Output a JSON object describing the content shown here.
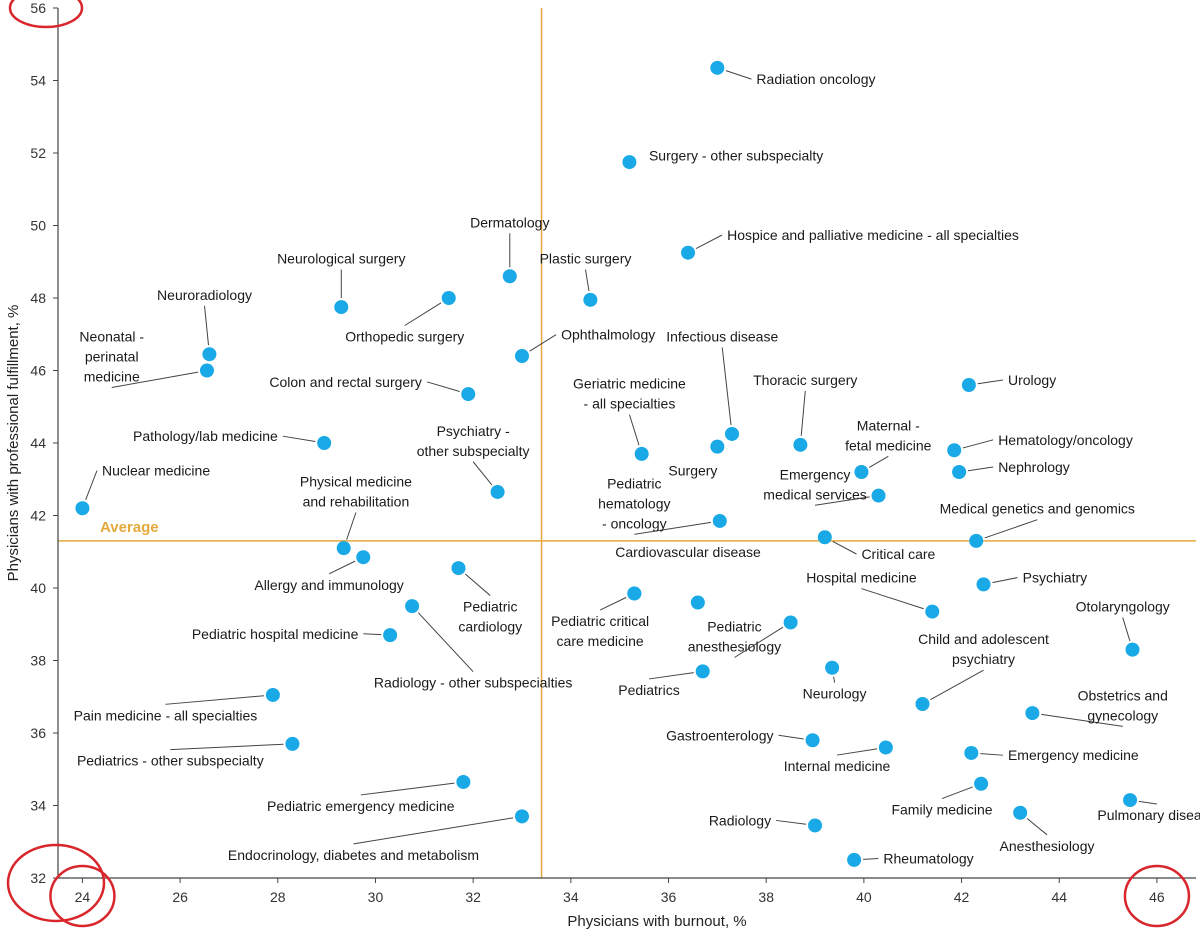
{
  "colors": {
    "point": "#18a9e6",
    "average": "#e5a93b",
    "axis": "#444444",
    "highlight_circle": "#d9262c",
    "leader": "#444444"
  },
  "chart_data": {
    "type": "scatter",
    "title": "",
    "xlabel": "Physicians with burnout, %",
    "ylabel": "Physicians with professional fulfillment, %",
    "xlim": [
      23.5,
      46.8
    ],
    "ylim": [
      32,
      56
    ],
    "xticks": [
      24,
      26,
      28,
      30,
      32,
      34,
      36,
      38,
      40,
      42,
      44,
      46
    ],
    "yticks": [
      32,
      34,
      36,
      38,
      40,
      42,
      44,
      46,
      48,
      50,
      52,
      54,
      56
    ],
    "average": {
      "x": 33.4,
      "y": 41.3,
      "label": "Average"
    },
    "highlighted_ticks": [
      {
        "axis": "y",
        "value": 56
      },
      {
        "axis": "y",
        "value": 32
      },
      {
        "axis": "x",
        "value": 24
      },
      {
        "axis": "x",
        "value": 46
      }
    ],
    "points": [
      {
        "x": 37.0,
        "y": 54.35,
        "name": [
          "Radiation oncology"
        ],
        "anchor": "start",
        "lx": 37.8,
        "ly": 53.9
      },
      {
        "x": 35.2,
        "y": 51.75,
        "name": [
          "Surgery - other subspecialty"
        ],
        "anchor": "start",
        "lx": 35.6,
        "ly": 51.8,
        "noleader": true
      },
      {
        "x": 36.4,
        "y": 49.25,
        "name": [
          "Hospice and palliative medicine - all specialties"
        ],
        "anchor": "start",
        "lx": 37.2,
        "ly": 49.6
      },
      {
        "x": 32.75,
        "y": 48.6,
        "name": [
          "Dermatology"
        ],
        "anchor": "middle",
        "lx": 32.75,
        "ly": 49.95
      },
      {
        "x": 34.4,
        "y": 47.95,
        "name": [
          "Plastic surgery"
        ],
        "anchor": "middle",
        "lx": 34.3,
        "ly": 48.95
      },
      {
        "x": 29.3,
        "y": 47.75,
        "name": [
          "Neurological surgery"
        ],
        "anchor": "middle",
        "lx": 29.3,
        "ly": 48.95
      },
      {
        "x": 31.5,
        "y": 48.0,
        "name": [
          "Orthopedic surgery"
        ],
        "anchor": "middle",
        "lx": 30.6,
        "ly": 46.8
      },
      {
        "x": 26.6,
        "y": 46.45,
        "name": [
          "Neuroradiology"
        ],
        "anchor": "middle",
        "lx": 26.5,
        "ly": 47.95
      },
      {
        "x": 26.55,
        "y": 46.0,
        "name": [
          "Neonatal -",
          "perinatal",
          "medicine"
        ],
        "anchor": "middle",
        "lx": 24.6,
        "ly": 46.8
      },
      {
        "x": 33.0,
        "y": 46.4,
        "name": [
          "Ophthalmology"
        ],
        "anchor": "start",
        "lx": 33.8,
        "ly": 46.85
      },
      {
        "x": 37.3,
        "y": 44.25,
        "name": [
          "Infectious disease"
        ],
        "anchor": "middle",
        "lx": 37.1,
        "ly": 46.8
      },
      {
        "x": 31.9,
        "y": 45.35,
        "name": [
          "Colon and rectal surgery"
        ],
        "anchor": "end",
        "lx": 30.95,
        "ly": 45.55
      },
      {
        "x": 42.15,
        "y": 45.6,
        "name": [
          "Urology"
        ],
        "anchor": "start",
        "lx": 42.95,
        "ly": 45.6
      },
      {
        "x": 38.7,
        "y": 43.95,
        "name": [
          "Thoracic surgery"
        ],
        "anchor": "middle",
        "lx": 38.8,
        "ly": 45.6
      },
      {
        "x": 35.45,
        "y": 43.7,
        "name": [
          "Geriatric medicine",
          "- all specialties"
        ],
        "anchor": "middle",
        "lx": 35.2,
        "ly": 45.5
      },
      {
        "x": 28.95,
        "y": 44.0,
        "name": [
          "Pathology/lab medicine"
        ],
        "anchor": "end",
        "lx": 28.0,
        "ly": 44.05
      },
      {
        "x": 32.5,
        "y": 42.65,
        "name": [
          "Psychiatry -",
          "other subspecialty"
        ],
        "anchor": "middle",
        "lx": 32.0,
        "ly": 44.2
      },
      {
        "x": 37.0,
        "y": 43.9,
        "name": [
          "Surgery"
        ],
        "anchor": "middle",
        "lx": 36.5,
        "ly": 43.1,
        "noleader": true
      },
      {
        "x": 39.95,
        "y": 43.2,
        "name": [
          "Maternal -",
          "fetal medicine"
        ],
        "anchor": "middle",
        "lx": 40.5,
        "ly": 44.35
      },
      {
        "x": 41.85,
        "y": 43.8,
        "name": [
          "Hematology/oncology"
        ],
        "anchor": "start",
        "lx": 42.75,
        "ly": 43.95
      },
      {
        "x": 41.95,
        "y": 43.2,
        "name": [
          "Nephrology"
        ],
        "anchor": "start",
        "lx": 42.75,
        "ly": 43.2
      },
      {
        "x": 40.3,
        "y": 42.55,
        "name": [
          "Emergency",
          "medical services"
        ],
        "anchor": "middle",
        "lx": 39.0,
        "ly": 43.0
      },
      {
        "x": 24.0,
        "y": 42.2,
        "name": [
          "Nuclear medicine"
        ],
        "anchor": "start",
        "lx": 24.4,
        "ly": 43.1
      },
      {
        "x": 29.35,
        "y": 41.1,
        "name": [
          "Physical medicine",
          "and rehabilitation"
        ],
        "anchor": "middle",
        "lx": 29.6,
        "ly": 42.8
      },
      {
        "x": 37.05,
        "y": 41.85,
        "name": [
          "Pediatric",
          "hematology",
          "- oncology"
        ],
        "anchor": "middle",
        "lx": 35.3,
        "ly": 42.75
      },
      {
        "x": 42.3,
        "y": 41.3,
        "name": [
          "Medical genetics and genomics"
        ],
        "anchor": "middle",
        "lx": 43.55,
        "ly": 42.05
      },
      {
        "x": 39.2,
        "y": 41.4,
        "name": [
          "Critical care"
        ],
        "anchor": "start",
        "lx": 39.95,
        "ly": 40.8
      },
      {
        "x": 29.75,
        "y": 40.85,
        "name": [
          "Allergy and immunology"
        ],
        "anchor": "middle",
        "lx": 29.05,
        "ly": 39.95
      },
      {
        "x": 31.7,
        "y": 40.55,
        "name": [
          "Pediatric",
          "cardiology"
        ],
        "anchor": "middle",
        "lx": 32.35,
        "ly": 39.35
      },
      {
        "x": 35.3,
        "y": 39.85,
        "name": [
          "Cardiovascular disease"
        ],
        "anchor": "middle",
        "lx": 36.4,
        "ly": 40.85,
        "noleader": true
      },
      {
        "x": 36.6,
        "y": 39.6,
        "name": [
          "Cardiovascular disease"
        ],
        "anchor": "none",
        "lx": 36.6,
        "ly": 40.6,
        "hidelabel": true
      },
      {
        "x": 41.4,
        "y": 39.35,
        "name": [
          "Hospital medicine"
        ],
        "anchor": "middle",
        "lx": 39.95,
        "ly": 40.15
      },
      {
        "x": 42.45,
        "y": 40.1,
        "name": [
          "Psychiatry"
        ],
        "anchor": "start",
        "lx": 43.25,
        "ly": 40.15
      },
      {
        "x": 30.75,
        "y": 39.5,
        "name": [
          "Radiology - other subspecialties"
        ],
        "anchor": "middle",
        "lx": 32.0,
        "ly": 37.25
      },
      {
        "x": 30.3,
        "y": 38.7,
        "name": [
          "Pediatric hospital medicine"
        ],
        "anchor": "end",
        "lx": 29.65,
        "ly": 38.6
      },
      {
        "x": 35.3,
        "y": 39.85,
        "name": [
          "Pediatric critical",
          "care medicine"
        ],
        "anchor": "middle",
        "lx": 34.6,
        "ly": 38.95
      },
      {
        "x": 38.5,
        "y": 39.05,
        "name": [
          "Pediatric",
          "anesthesiology"
        ],
        "anchor": "middle",
        "lx": 37.35,
        "ly": 38.8
      },
      {
        "x": 45.5,
        "y": 38.3,
        "name": [
          "Otolaryngology"
        ],
        "anchor": "middle",
        "lx": 45.3,
        "ly": 39.35
      },
      {
        "x": 36.7,
        "y": 37.7,
        "name": [
          "Pediatrics"
        ],
        "anchor": "middle",
        "lx": 35.6,
        "ly": 37.05
      },
      {
        "x": 39.35,
        "y": 37.8,
        "name": [
          "Neurology"
        ],
        "anchor": "middle",
        "lx": 39.4,
        "ly": 36.95
      },
      {
        "x": 41.2,
        "y": 36.8,
        "name": [
          "Child and adolescent",
          "psychiatry"
        ],
        "anchor": "middle",
        "lx": 42.45,
        "ly": 38.45
      },
      {
        "x": 27.9,
        "y": 37.05,
        "name": [
          "Pain medicine - all specialties"
        ],
        "anchor": "middle",
        "lx": 25.7,
        "ly": 36.35
      },
      {
        "x": 43.45,
        "y": 36.55,
        "name": [
          "Obstetrics and",
          "gynecology"
        ],
        "anchor": "middle",
        "lx": 45.3,
        "ly": 36.9
      },
      {
        "x": 38.95,
        "y": 35.8,
        "name": [
          "Gastroenterology"
        ],
        "anchor": "end",
        "lx": 38.15,
        "ly": 35.8
      },
      {
        "x": 40.45,
        "y": 35.6,
        "name": [
          "Internal medicine"
        ],
        "anchor": "middle",
        "lx": 39.45,
        "ly": 34.95
      },
      {
        "x": 42.2,
        "y": 35.45,
        "name": [
          "Emergency medicine"
        ],
        "anchor": "start",
        "lx": 42.95,
        "ly": 35.25
      },
      {
        "x": 28.3,
        "y": 35.7,
        "name": [
          "Pediatrics - other subspecialty"
        ],
        "anchor": "middle",
        "lx": 25.8,
        "ly": 35.1
      },
      {
        "x": 31.8,
        "y": 34.65,
        "name": [
          "Pediatric emergency medicine"
        ],
        "anchor": "middle",
        "lx": 29.7,
        "ly": 33.85
      },
      {
        "x": 42.4,
        "y": 34.6,
        "name": [
          "Family medicine"
        ],
        "anchor": "middle",
        "lx": 41.6,
        "ly": 33.75
      },
      {
        "x": 45.45,
        "y": 34.15,
        "name": [
          "Pulmonary disease"
        ],
        "anchor": "middle",
        "lx": 46.0,
        "ly": 33.6
      },
      {
        "x": 43.2,
        "y": 33.8,
        "name": [
          "Anesthesiology"
        ],
        "anchor": "middle",
        "lx": 43.75,
        "ly": 32.75
      },
      {
        "x": 33.0,
        "y": 33.7,
        "name": [
          "Endocrinology, diabetes and metabolism"
        ],
        "anchor": "middle",
        "lx": 29.55,
        "ly": 32.5
      },
      {
        "x": 39.0,
        "y": 33.45,
        "name": [
          "Radiology"
        ],
        "anchor": "end",
        "lx": 38.1,
        "ly": 33.45
      },
      {
        "x": 39.8,
        "y": 32.5,
        "name": [
          "Rheumatology"
        ],
        "anchor": "start",
        "lx": 40.4,
        "ly": 32.4
      }
    ]
  }
}
